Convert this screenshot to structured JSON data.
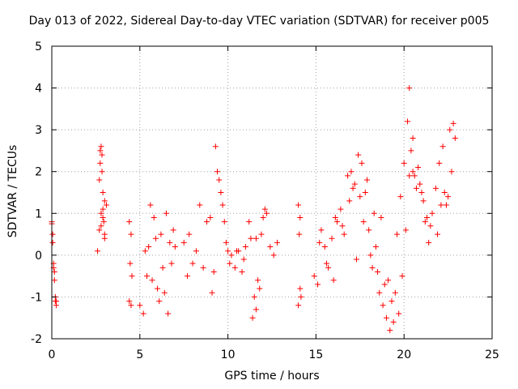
{
  "chart_data": {
    "type": "scatter",
    "title": "Day 013 of 2022, Sidereal Day-to-day VTEC variation (SDTVAR) for receiver p005",
    "xlabel": "GPS time / hours",
    "ylabel": "SDTVAR / TECUs",
    "xlim": [
      0,
      25
    ],
    "ylim": [
      -2,
      5
    ],
    "xticks": [
      "0",
      "5",
      "10",
      "15",
      "20",
      "25"
    ],
    "yticks": [
      "-2",
      "-1",
      "0",
      "1",
      "2",
      "3",
      "4",
      "5"
    ],
    "grid": true,
    "marker": "+",
    "color": "#ff0000",
    "series": [
      {
        "name": "p005",
        "x": [
          0.0,
          0.05,
          0.1,
          0.15,
          0.2,
          0.25,
          0.0,
          0.05,
          0.1,
          0.15,
          0.2,
          0.25,
          2.6,
          2.7,
          2.75,
          2.8,
          2.85,
          2.9,
          2.95,
          3.0,
          3.1,
          2.7,
          2.8,
          2.9,
          3.0,
          2.75,
          2.85,
          3.0,
          2.8,
          2.9,
          4.4,
          4.5,
          4.45,
          4.55,
          4.4,
          4.5,
          5.0,
          5.2,
          5.4,
          5.5,
          5.6,
          5.8,
          6.0,
          6.1,
          6.2,
          6.3,
          6.5,
          6.6,
          6.7,
          6.8,
          6.9,
          7.0,
          5.3,
          5.7,
          6.4,
          5.9,
          7.5,
          7.7,
          7.8,
          8.0,
          8.2,
          8.4,
          8.6,
          8.8,
          9.0,
          9.1,
          9.2,
          9.3,
          9.4,
          9.5,
          9.6,
          9.7,
          9.8,
          9.9,
          10.0,
          10.1,
          10.2,
          10.4,
          10.6,
          10.8,
          11.0,
          11.2,
          11.4,
          11.6,
          11.8,
          12.0,
          12.2,
          12.4,
          12.6,
          12.8,
          11.5,
          11.7,
          11.9,
          12.1,
          11.6,
          10.5,
          10.9,
          11.3,
          14.0,
          14.1,
          14.05,
          14.15,
          14.0,
          14.1,
          14.9,
          15.1,
          15.3,
          15.5,
          15.7,
          15.9,
          16.0,
          16.2,
          16.4,
          16.6,
          16.8,
          17.0,
          17.2,
          17.4,
          17.6,
          17.8,
          18.0,
          18.2,
          18.4,
          18.6,
          18.8,
          19.0,
          19.2,
          19.4,
          19.6,
          19.8,
          20.0,
          20.2,
          20.3,
          20.4,
          20.5,
          20.6,
          20.8,
          21.0,
          21.2,
          21.4,
          21.6,
          21.8,
          22.0,
          22.2,
          22.4,
          22.6,
          22.8,
          22.9,
          15.2,
          15.6,
          16.1,
          16.5,
          16.9,
          17.1,
          17.5,
          17.9,
          18.3,
          18.7,
          19.1,
          19.5,
          19.9,
          20.3,
          20.7,
          21.1,
          21.5,
          21.9,
          22.3,
          22.7,
          17.3,
          17.7,
          18.1,
          18.5,
          18.9,
          19.3,
          19.7,
          20.1,
          20.5,
          20.9,
          21.3,
          22.1,
          22.5
        ],
        "y": [
          0.8,
          0.5,
          -0.3,
          -0.6,
          -1.1,
          -1.2,
          0.75,
          0.3,
          -0.2,
          -0.4,
          -1.0,
          -1.1,
          0.1,
          1.8,
          2.5,
          2.6,
          2.4,
          1.5,
          0.8,
          0.4,
          1.2,
          0.6,
          1.0,
          0.9,
          0.5,
          2.2,
          2.0,
          1.3,
          0.7,
          1.1,
          0.8,
          0.5,
          -0.2,
          -0.5,
          -1.1,
          -1.2,
          -1.2,
          -1.4,
          -0.5,
          0.2,
          1.2,
          0.9,
          -0.8,
          -1.1,
          0.5,
          -0.3,
          1.0,
          -1.4,
          0.3,
          -0.2,
          0.6,
          0.2,
          0.1,
          -0.6,
          -0.9,
          0.4,
          0.3,
          -0.5,
          0.5,
          -0.2,
          0.1,
          1.2,
          -0.3,
          0.8,
          0.9,
          -0.9,
          -0.4,
          2.6,
          2.0,
          1.8,
          1.5,
          1.2,
          0.8,
          0.3,
          0.1,
          -0.2,
          0.0,
          -0.3,
          0.1,
          -0.4,
          0.2,
          0.8,
          -1.5,
          0.4,
          -0.8,
          0.9,
          1.0,
          0.2,
          0.0,
          0.3,
          -1.0,
          -0.6,
          0.5,
          1.1,
          -1.3,
          0.1,
          -0.1,
          0.4,
          1.2,
          0.9,
          0.5,
          -1.0,
          -1.2,
          -0.8,
          -0.5,
          -0.7,
          0.6,
          0.2,
          -0.3,
          0.4,
          -0.6,
          0.8,
          1.1,
          0.5,
          1.9,
          2.0,
          1.7,
          2.4,
          2.2,
          1.5,
          0.6,
          -0.3,
          0.2,
          -0.9,
          -1.2,
          -1.5,
          -1.8,
          -1.6,
          0.5,
          1.4,
          2.2,
          3.2,
          4.0,
          2.5,
          2.8,
          1.9,
          2.1,
          1.5,
          0.8,
          0.3,
          1.0,
          1.6,
          2.2,
          2.6,
          1.2,
          3.0,
          3.15,
          2.8,
          0.3,
          -0.2,
          0.9,
          0.7,
          1.3,
          1.6,
          1.4,
          1.8,
          1.0,
          0.9,
          -0.6,
          -0.9,
          -0.5,
          1.9,
          1.6,
          1.3,
          0.7,
          0.5,
          1.5,
          2.0,
          -0.1,
          0.8,
          0.0,
          -0.4,
          -0.7,
          -1.1,
          -1.4,
          0.6,
          2.0,
          1.7,
          0.9,
          1.2,
          1.4
        ]
      }
    ]
  }
}
